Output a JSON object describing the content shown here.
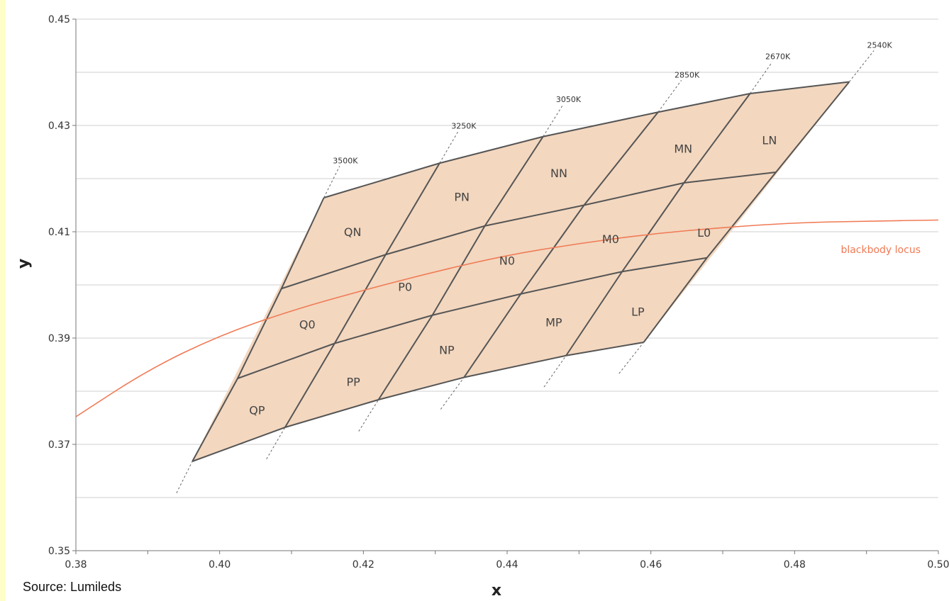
{
  "source_text": "Source: Lumileds",
  "colors": {
    "page_border": "#fefec8",
    "bin_fill": "#f3d7bf",
    "bin_stroke": "#555555",
    "locus": "#f07a55",
    "grid": "#cfcfcf"
  },
  "chart_data": {
    "type": "line",
    "title": "",
    "xlabel": "x",
    "ylabel": "y",
    "xlim": [
      0.38,
      0.5
    ],
    "ylim": [
      0.35,
      0.45
    ],
    "x_ticks": [
      "0.38",
      "0.40",
      "0.42",
      "0.44",
      "0.46",
      "0.48",
      "0.50"
    ],
    "x_tick_values": [
      0.38,
      0.4,
      0.42,
      0.44,
      0.46,
      0.48,
      0.5
    ],
    "y_ticks": [
      "0.35",
      "0.37",
      "0.39",
      "0.41",
      "0.43",
      "0.45"
    ],
    "y_tick_values": [
      0.35,
      0.37,
      0.39,
      0.41,
      0.43,
      0.45
    ],
    "grid": true,
    "isotherm_lines": [
      {
        "label": "3500K",
        "points": [
          [
            0.3962,
            0.3668
          ],
          [
            0.4025,
            0.3824
          ],
          [
            0.4086,
            0.3993
          ],
          [
            0.4145,
            0.4164
          ]
        ]
      },
      {
        "label": "3250K",
        "points": [
          [
            0.4091,
            0.3732
          ],
          [
            0.416,
            0.389
          ],
          [
            0.4231,
            0.4057
          ],
          [
            0.4306,
            0.4229
          ]
        ]
      },
      {
        "label": "3050K",
        "points": [
          [
            0.4221,
            0.3784
          ],
          [
            0.4296,
            0.3943
          ],
          [
            0.4369,
            0.4111
          ],
          [
            0.445,
            0.4279
          ]
        ]
      },
      {
        "label": "2850K",
        "points": [
          [
            0.434,
            0.3826
          ],
          [
            0.4419,
            0.3983
          ],
          [
            0.4507,
            0.415
          ],
          [
            0.461,
            0.4325
          ]
        ]
      },
      {
        "label": "2670K",
        "points": [
          [
            0.4482,
            0.3867
          ],
          [
            0.456,
            0.4025
          ],
          [
            0.4646,
            0.4192
          ],
          [
            0.4738,
            0.436
          ]
        ]
      },
      {
        "label": "2540K",
        "points": [
          [
            0.459,
            0.3892
          ],
          [
            0.4678,
            0.4051
          ],
          [
            0.4774,
            0.4212
          ],
          [
            0.4876,
            0.4382
          ]
        ]
      }
    ],
    "bin_boundaries": [
      [
        [
          0.3962,
          0.3668
        ],
        [
          0.4091,
          0.3732
        ],
        [
          0.4221,
          0.3784
        ],
        [
          0.434,
          0.3826
        ],
        [
          0.4482,
          0.3867
        ],
        [
          0.459,
          0.3892
        ]
      ],
      [
        [
          0.4025,
          0.3824
        ],
        [
          0.416,
          0.389
        ],
        [
          0.4296,
          0.3943
        ],
        [
          0.4419,
          0.3983
        ],
        [
          0.456,
          0.4025
        ],
        [
          0.4678,
          0.4051
        ]
      ],
      [
        [
          0.4086,
          0.3993
        ],
        [
          0.4231,
          0.4057
        ],
        [
          0.4369,
          0.4111
        ],
        [
          0.4507,
          0.415
        ],
        [
          0.4646,
          0.4192
        ],
        [
          0.4774,
          0.4212
        ]
      ],
      [
        [
          0.4145,
          0.4164
        ],
        [
          0.4306,
          0.4229
        ],
        [
          0.445,
          0.4279
        ],
        [
          0.461,
          0.4325
        ],
        [
          0.4738,
          0.436
        ],
        [
          0.4876,
          0.4382
        ]
      ]
    ],
    "bins": [
      {
        "label": "QN",
        "x": 0.4185,
        "y": 0.41
      },
      {
        "label": "PN",
        "x": 0.4337,
        "y": 0.4166
      },
      {
        "label": "NN",
        "x": 0.4472,
        "y": 0.4211
      },
      {
        "label": "MN",
        "x": 0.4645,
        "y": 0.4257
      },
      {
        "label": "LN",
        "x": 0.4765,
        "y": 0.4273
      },
      {
        "label": "Q0",
        "x": 0.4122,
        "y": 0.3926
      },
      {
        "label": "P0",
        "x": 0.4258,
        "y": 0.3997
      },
      {
        "label": "N0",
        "x": 0.44,
        "y": 0.4046
      },
      {
        "label": "M0",
        "x": 0.4544,
        "y": 0.4087
      },
      {
        "label": "L0",
        "x": 0.4674,
        "y": 0.4099
      },
      {
        "label": "QP",
        "x": 0.4052,
        "y": 0.3765
      },
      {
        "label": "PP",
        "x": 0.4186,
        "y": 0.3818
      },
      {
        "label": "NP",
        "x": 0.4316,
        "y": 0.3878
      },
      {
        "label": "MP",
        "x": 0.4465,
        "y": 0.393
      },
      {
        "label": "LP",
        "x": 0.4582,
        "y": 0.395
      }
    ],
    "series": [
      {
        "name": "blackbody locus",
        "x": [
          0.38,
          0.39,
          0.4,
          0.41,
          0.42,
          0.43,
          0.44,
          0.45,
          0.46,
          0.47,
          0.48,
          0.49,
          0.5
        ],
        "y": [
          0.3752,
          0.384,
          0.3905,
          0.3952,
          0.399,
          0.4025,
          0.4056,
          0.4078,
          0.4096,
          0.4108,
          0.4117,
          0.412,
          0.4122
        ]
      }
    ]
  }
}
